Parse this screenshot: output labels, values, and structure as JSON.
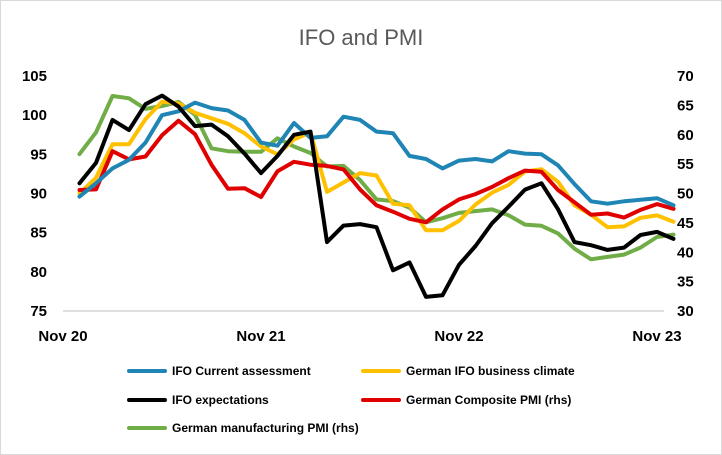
{
  "chart_data": {
    "type": "line",
    "title": "IFO and PMI",
    "x_tick_labels": [
      "Nov 20",
      "Nov 21",
      "Nov 22",
      "Nov 23"
    ],
    "x_start": "Nov 20",
    "x_end": "Dec 23",
    "ylim_left": [
      75,
      105
    ],
    "yticks_left": [
      "75",
      "80",
      "85",
      "90",
      "95",
      "100",
      "105"
    ],
    "ylim_right": [
      30,
      70
    ],
    "yticks_right": [
      "30",
      "35",
      "40",
      "45",
      "50",
      "55",
      "60",
      "65",
      "70"
    ],
    "x_months": [
      "Dec 20",
      "Jan 21",
      "Feb 21",
      "Mar 21",
      "Apr 21",
      "May 21",
      "Jun 21",
      "Jul 21",
      "Aug 21",
      "Sep 21",
      "Oct 21",
      "Nov 21",
      "Dec 21",
      "Jan 22",
      "Feb 22",
      "Mar 22",
      "Apr 22",
      "May 22",
      "Jun 22",
      "Jul 22",
      "Aug 22",
      "Sep 22",
      "Oct 22",
      "Nov 22",
      "Dec 22",
      "Jan 23",
      "Feb 23",
      "Mar 23",
      "Apr 23",
      "May 23",
      "Jun 23",
      "Jul 23",
      "Aug 23",
      "Sep 23",
      "Oct 23",
      "Nov 23",
      "Dec 23"
    ],
    "series": [
      {
        "name": "IFO Current assessment",
        "axis": "left",
        "color": "#1f85b4",
        "values": [
          89.6,
          91.3,
          93.2,
          94.3,
          96.5,
          100.0,
          100.5,
          101.6,
          100.9,
          100.6,
          99.4,
          96.5,
          96.1,
          99.0,
          97.1,
          97.3,
          99.8,
          99.4,
          97.9,
          97.7,
          94.8,
          94.4,
          93.2,
          94.2,
          94.4,
          94.1,
          95.4,
          95.1,
          95.0,
          93.6,
          91.2,
          89.0,
          88.7,
          89.0,
          89.2,
          89.4,
          88.5
        ]
      },
      {
        "name": "German IFO business climate",
        "axis": "left",
        "color": "#ffc000",
        "values": [
          90.0,
          92.0,
          96.3,
          96.3,
          99.5,
          101.7,
          101.5,
          100.3,
          99.6,
          98.9,
          97.7,
          96.0,
          95.0,
          96.9,
          97.8,
          90.2,
          91.4,
          92.6,
          92.3,
          88.7,
          88.5,
          85.3,
          85.3,
          86.5,
          88.6,
          90.1,
          91.1,
          92.8,
          93.1,
          91.5,
          88.5,
          87.3,
          85.7,
          85.8,
          86.9,
          87.2,
          86.4
        ]
      },
      {
        "name": "IFO expectations",
        "axis": "left",
        "color": "#000000",
        "values": [
          91.3,
          93.9,
          99.4,
          98.1,
          101.4,
          102.5,
          101.1,
          98.6,
          98.8,
          97.3,
          95.1,
          92.6,
          94.8,
          97.5,
          97.9,
          83.8,
          85.9,
          86.1,
          85.7,
          80.2,
          81.2,
          76.8,
          77.0,
          80.9,
          83.3,
          86.2,
          88.3,
          90.5,
          91.3,
          88.0,
          83.8,
          83.4,
          82.8,
          83.1,
          84.7,
          85.1,
          84.2
        ]
      },
      {
        "name": "German Composite PMI (rhs)",
        "axis": "right",
        "color": "#e00000",
        "values": [
          50.6,
          50.7,
          57.2,
          55.8,
          56.3,
          59.9,
          62.4,
          60.1,
          54.9,
          50.8,
          50.9,
          49.4,
          53.8,
          55.4,
          54.9,
          54.7,
          54.1,
          50.7,
          48.0,
          46.9,
          45.7,
          45.1,
          47.3,
          49.0,
          49.9,
          51.1,
          52.6,
          53.9,
          53.7,
          50.6,
          48.5,
          46.4,
          46.6,
          45.9,
          47.2,
          48.2,
          47.4
        ]
      },
      {
        "name": "German manufacturing PMI (rhs)",
        "axis": "right",
        "color": "#70ad47",
        "values": [
          56.7,
          60.4,
          66.6,
          66.2,
          64.4,
          64.9,
          65.6,
          63.4,
          57.7,
          57.2,
          57.1,
          57.1,
          59.4,
          58.0,
          56.9,
          54.6,
          54.7,
          52.3,
          49.0,
          48.7,
          47.6,
          45.1,
          45.8,
          46.7,
          47.0,
          47.3,
          46.3,
          44.7,
          44.5,
          43.2,
          40.6,
          38.8,
          39.2,
          39.6,
          40.8,
          42.6,
          43.0
        ]
      }
    ],
    "legend_position": "bottom",
    "grid": false
  }
}
